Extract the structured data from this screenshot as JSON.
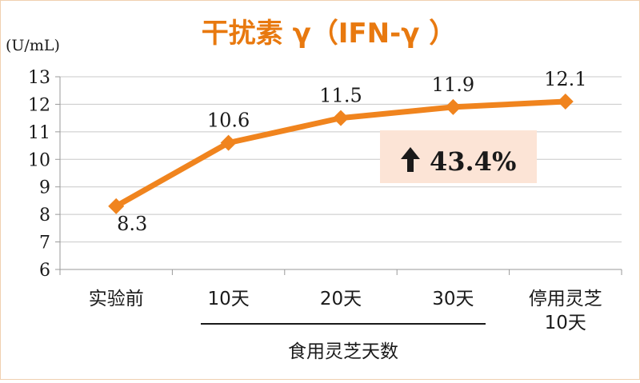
{
  "colors": {
    "line": "#F0841E",
    "title": "#E8790F",
    "grid": "#c8c8c8",
    "badge_bg": "#FCE4D6",
    "text": "#1a1a1a"
  },
  "chart_data": {
    "type": "line",
    "title": "干扰素 γ（IFN-γ ）",
    "ylabel": "(U/mL)",
    "ylim": [
      6,
      13
    ],
    "yticks": [
      13,
      12,
      11,
      10,
      9,
      8,
      7,
      6
    ],
    "categories": [
      [
        "实验前"
      ],
      [
        "10天"
      ],
      [
        "20天"
      ],
      [
        "30天"
      ],
      [
        "停用灵芝",
        "10天"
      ]
    ],
    "group_label": "食用灵芝天数",
    "series": [
      {
        "values": [
          8.3,
          10.6,
          11.5,
          11.9,
          12.1
        ],
        "labels": [
          "8.3",
          "10.6",
          "11.5",
          "11.9",
          "12.1"
        ]
      }
    ],
    "annotation": {
      "arrow": "up-arrow-icon",
      "text": "43.4%"
    },
    "grid": true,
    "legend": "none"
  }
}
